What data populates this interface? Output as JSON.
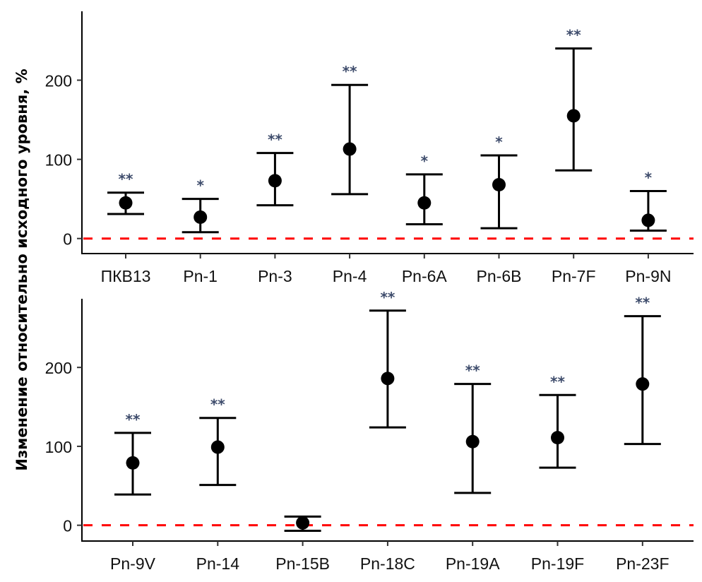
{
  "chart_data": {
    "type": "errorbar",
    "ylabel": "Изменение относительно исходного уровня, %",
    "colors": {
      "point": "#000000",
      "errorbar": "#000000",
      "reference_line": "#ff0000",
      "significance": "#3d4b6b"
    },
    "reference_line": {
      "y": 0,
      "style": "dashed"
    },
    "panels": [
      {
        "name": "top",
        "ylim": [
          -19,
          287
        ],
        "yticks": [
          0,
          100,
          200
        ],
        "categories": [
          "ПКВ13",
          "Pn-1",
          "Pn-3",
          "Pn-4",
          "Pn-6A",
          "Pn-6B",
          "Pn-7F",
          "Pn-9N"
        ],
        "values": [
          45,
          27,
          73,
          113,
          45,
          68,
          155,
          23
        ],
        "lower": [
          31,
          8,
          42,
          56,
          18,
          13,
          86,
          10
        ],
        "upper": [
          58,
          50,
          108,
          194,
          81,
          105,
          240,
          60
        ],
        "significance": [
          "**",
          "*",
          "**",
          "**",
          "*",
          "*",
          "**",
          "*"
        ]
      },
      {
        "name": "bottom",
        "ylim": [
          -20,
          287
        ],
        "yticks": [
          0,
          100,
          200
        ],
        "categories": [
          "Pn-9V",
          "Pn-14",
          "Pn-15B",
          "Pn-18C",
          "Pn-19A",
          "Pn-19F",
          "Pn-23F"
        ],
        "values": [
          79,
          99,
          3,
          186,
          106,
          111,
          179
        ],
        "lower": [
          39,
          51,
          -7,
          124,
          41,
          73,
          103
        ],
        "upper": [
          117,
          136,
          11,
          272,
          179,
          165,
          265
        ],
        "significance": [
          "**",
          "**",
          "",
          "**",
          "**",
          "**",
          "**"
        ]
      }
    ]
  }
}
